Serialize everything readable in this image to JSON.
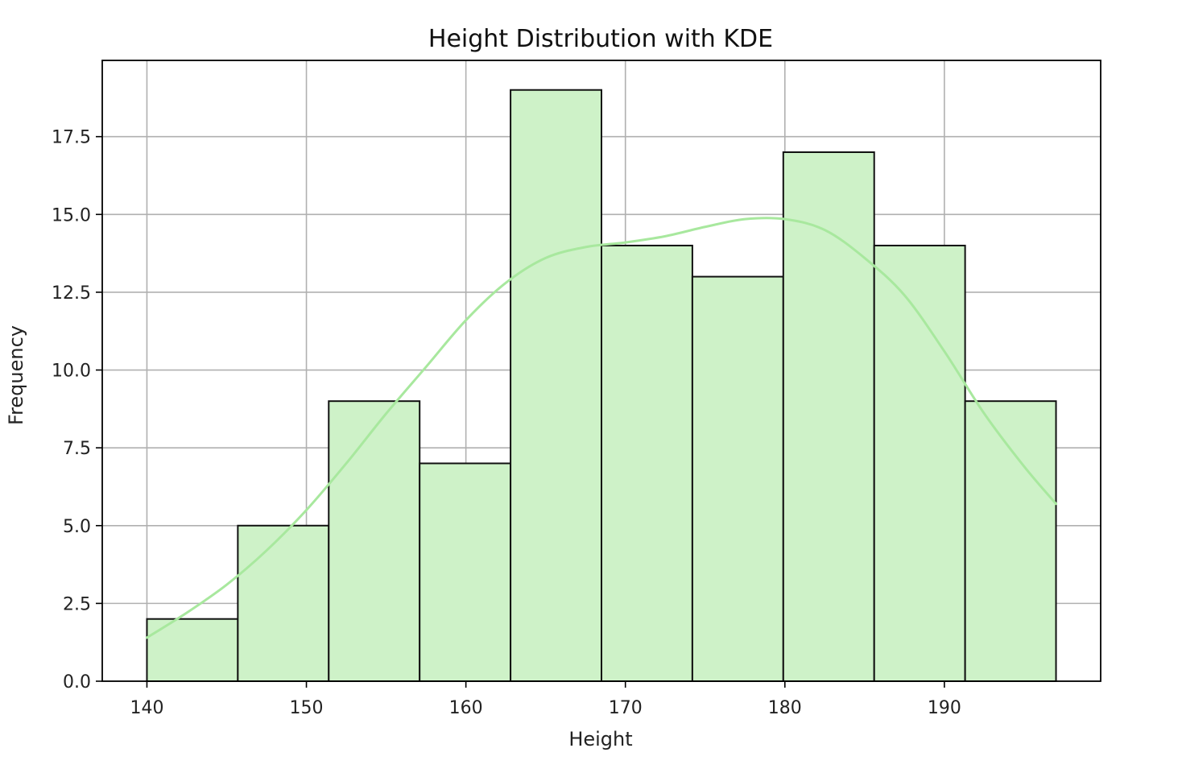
{
  "chart_data": {
    "type": "bar",
    "title": "Height Distribution with KDE",
    "xlabel": "Height",
    "ylabel": "Frequency",
    "xlim": [
      137.2,
      199.8
    ],
    "ylim": [
      0,
      19.95
    ],
    "grid": true,
    "x_ticks": [
      "140",
      "150",
      "160",
      "170",
      "180",
      "190"
    ],
    "x_tick_values": [
      140,
      150,
      160,
      170,
      180,
      190
    ],
    "y_ticks": [
      "0.0",
      "2.5",
      "5.0",
      "7.5",
      "10.0",
      "12.5",
      "15.0",
      "17.5"
    ],
    "y_tick_values": [
      0,
      2.5,
      5,
      7.5,
      10,
      12.5,
      15,
      17.5
    ],
    "bins": [
      {
        "x0": 140.0,
        "x1": 145.7,
        "value": 2
      },
      {
        "x0": 145.7,
        "x1": 151.4,
        "value": 5
      },
      {
        "x0": 151.4,
        "x1": 157.1,
        "value": 9
      },
      {
        "x0": 157.1,
        "x1": 162.8,
        "value": 7
      },
      {
        "x0": 162.8,
        "x1": 168.5,
        "value": 19
      },
      {
        "x0": 168.5,
        "x1": 174.2,
        "value": 14
      },
      {
        "x0": 174.2,
        "x1": 179.9,
        "value": 13
      },
      {
        "x0": 179.9,
        "x1": 185.6,
        "value": 17
      },
      {
        "x0": 185.6,
        "x1": 191.3,
        "value": 14
      },
      {
        "x0": 191.3,
        "x1": 197.0,
        "value": 9
      }
    ],
    "kde": {
      "x": [
        140,
        142.5,
        145,
        147.5,
        150,
        152.5,
        155,
        157.5,
        160,
        162.5,
        165,
        167.5,
        170,
        172.5,
        175,
        177.5,
        180,
        182.5,
        185,
        187.5,
        190,
        192.5,
        195,
        197
      ],
      "y": [
        1.4,
        2.2,
        3.1,
        4.2,
        5.5,
        7.0,
        8.6,
        10.1,
        11.6,
        12.8,
        13.6,
        13.95,
        14.1,
        14.3,
        14.6,
        14.85,
        14.85,
        14.5,
        13.6,
        12.4,
        10.6,
        8.6,
        6.9,
        5.7
      ]
    },
    "colors": {
      "bar_fill": "#cef2c8",
      "bar_edge": "#111111",
      "kde_line": "#a8e89e",
      "grid": "#b0b0b0",
      "axes": "#000000"
    }
  }
}
